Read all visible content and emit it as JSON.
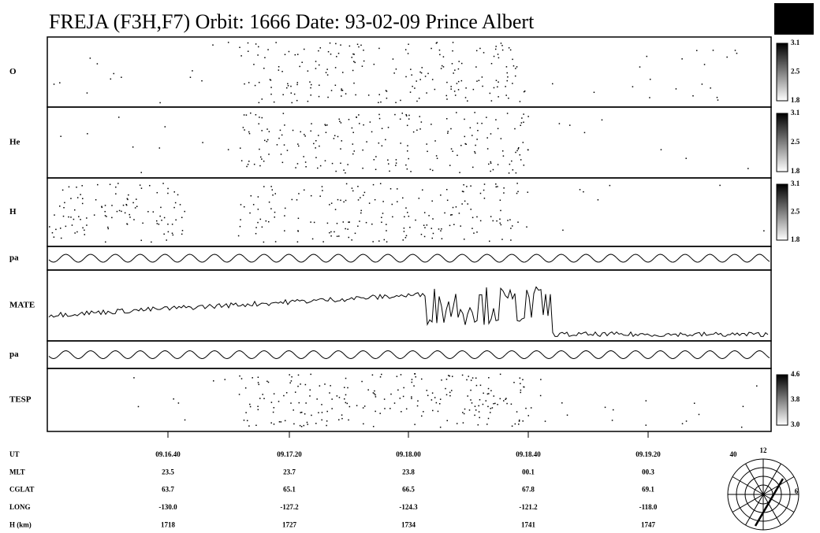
{
  "title": "FREJA (F3H,F7)  Orbit:  1666 Date: 93-02-09  Prince Albert",
  "panels": [
    {
      "label": "O",
      "colorbar": [
        "3.1",
        "2.5",
        "1.8"
      ]
    },
    {
      "label": "He",
      "colorbar": [
        "3.1",
        "2.5",
        "1.8"
      ]
    },
    {
      "label": "H",
      "colorbar": [
        "3.1",
        "2.5",
        "1.8"
      ]
    },
    {
      "label": "pa"
    },
    {
      "label": "MATE"
    },
    {
      "label": "pa"
    },
    {
      "label": "TESP",
      "colorbar": [
        "4.6",
        "3.8",
        "3.0"
      ]
    }
  ],
  "ephemeris": [
    {
      "name": "UT",
      "values": [
        "09.16.40",
        "09.17.20",
        "09.18.00",
        "09.18.40",
        "09.19.20"
      ]
    },
    {
      "name": "MLT",
      "values": [
        "23.5",
        "23.7",
        "23.8",
        "00.1",
        "00.3"
      ]
    },
    {
      "name": "CGLAT",
      "values": [
        "63.7",
        "65.1",
        "66.5",
        "67.8",
        "69.1"
      ]
    },
    {
      "name": "LONG",
      "values": [
        "-130.0",
        "-127.2",
        "-124.3",
        "-121.2",
        "-118.0"
      ]
    },
    {
      "name": "H (km)",
      "values": [
        "1718",
        "1727",
        "1734",
        "1741",
        "1747"
      ]
    }
  ],
  "polar": {
    "labels": [
      "40",
      "12",
      "6"
    ]
  }
}
